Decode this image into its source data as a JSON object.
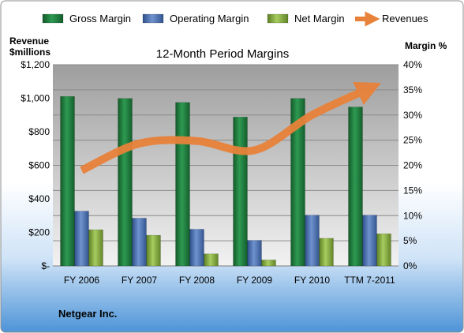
{
  "chart_data": {
    "type": "bar",
    "title": "12-Month Period Margins",
    "company": "Netgear Inc.",
    "categories": [
      "FY 2006",
      "FY 2007",
      "FY 2008",
      "FY 2009",
      "FY 2010",
      "TTM 7-2011"
    ],
    "series": [
      {
        "name": "Gross Margin",
        "axis": "right",
        "values": [
          33.7,
          33.3,
          32.5,
          29.6,
          33.3,
          31.6
        ],
        "color": "#1F7A3C"
      },
      {
        "name": "Operating Margin",
        "axis": "right",
        "values": [
          10.9,
          9.5,
          7.3,
          5.1,
          10.1,
          10.1
        ],
        "color": "#4A6FAF"
      },
      {
        "name": "Net Margin",
        "axis": "right",
        "values": [
          7.2,
          6.1,
          2.4,
          1.2,
          5.5,
          6.4
        ],
        "color": "#7FA83A"
      },
      {
        "name": "Revenues",
        "axis": "left",
        "type": "line",
        "values": [
          570,
          730,
          745,
          690,
          900,
          1060
        ],
        "color": "#E8823A"
      }
    ],
    "ylabel_left": "Revenue $millions",
    "ylabel_right": "Margin %",
    "ylim_left": [
      0,
      1200
    ],
    "ylim_right": [
      0,
      40
    ],
    "yticks_left": [
      "$-",
      "$200",
      "$400",
      "$600",
      "$800",
      "$1,000",
      "$1,200"
    ],
    "yticks_right": [
      "0%",
      "5%",
      "10%",
      "15%",
      "20%",
      "25%",
      "30%",
      "35%",
      "40%"
    ],
    "legend": [
      "Gross Margin",
      "Operating Margin",
      "Net Margin",
      "Revenues"
    ],
    "legend_position": "top",
    "grid": true
  }
}
